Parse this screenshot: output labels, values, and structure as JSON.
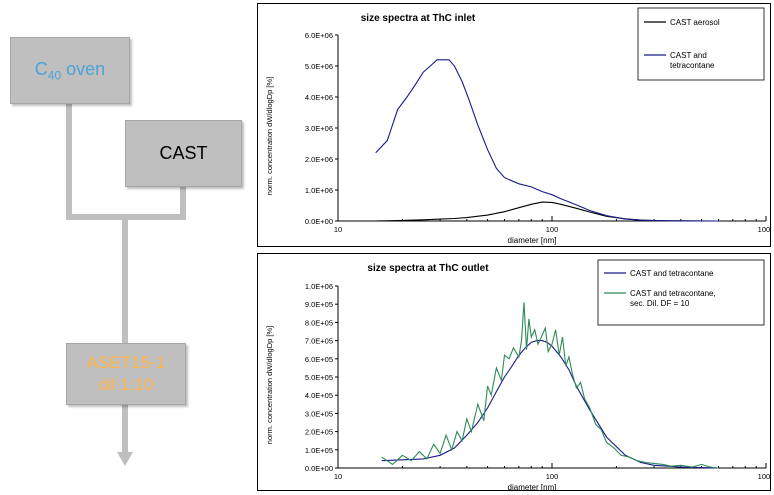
{
  "flow": {
    "c40_oven": "C",
    "c40_sub": "40",
    "c40_rest": " oven",
    "cast": "CAST",
    "aset_line1": "ASET15-1",
    "aset_line2": "dil 1:10"
  },
  "colors": {
    "black_series": "#000000",
    "blue_series": "#1a1a8c",
    "green_series": "#2e8b57",
    "flow_box": "#bfbfbf",
    "c40_text": "#4aa3d8",
    "aset_text": "#ffb347"
  },
  "chart_data": [
    {
      "type": "line",
      "title": "size spectra at ThC inlet",
      "xlabel": "diameter [nm]",
      "ylabel": "norm. concentration dW/dlogDp [%]",
      "xscale": "log",
      "xlim": [
        10,
        1000
      ],
      "ylim": [
        0,
        6000000
      ],
      "xticks": [
        "10",
        "100",
        "1000"
      ],
      "yticks": [
        "0.0E+00",
        "1.0E+06",
        "2.0E+06",
        "3.0E+06",
        "4.0E+06",
        "5.0E+06",
        "6.0E+06"
      ],
      "legend_position": "top-right",
      "series": [
        {
          "name": "CAST aerosol",
          "color": "#000000",
          "x": [
            15,
            20,
            25,
            30,
            35,
            40,
            50,
            60,
            70,
            80,
            90,
            100,
            110,
            130,
            150,
            180,
            220,
            260,
            300,
            350,
            400,
            500,
            600
          ],
          "y": [
            0,
            20000,
            40000,
            60000,
            80000,
            110000,
            190000,
            300000,
            430000,
            540000,
            610000,
            600000,
            540000,
            410000,
            290000,
            150000,
            70000,
            30000,
            15000,
            8000,
            5000,
            2000,
            0
          ]
        },
        {
          "name": "CAST and tetracontane",
          "color": "#1a1a8c",
          "x": [
            15,
            17,
            19,
            21,
            23,
            25,
            27,
            29,
            31,
            33,
            35,
            38,
            41,
            45,
            50,
            55,
            60,
            70,
            80,
            90,
            100,
            110,
            130,
            150,
            180,
            220,
            260,
            300,
            350,
            400,
            500,
            600
          ],
          "y": [
            2200000,
            2600000,
            3600000,
            4000000,
            4400000,
            4800000,
            5000000,
            5200000,
            5200000,
            5200000,
            5000000,
            4500000,
            3900000,
            3100000,
            2300000,
            1700000,
            1400000,
            1200000,
            1100000,
            950000,
            850000,
            720000,
            520000,
            340000,
            170000,
            60000,
            25000,
            12000,
            5000,
            3000,
            1000,
            0
          ]
        }
      ]
    },
    {
      "type": "line",
      "title": "size spectra at ThC outlet",
      "xlabel": "diameter [nm]",
      "ylabel": "norm. concentration dW/dlogDp [%]",
      "xscale": "log",
      "xlim": [
        10,
        1000
      ],
      "ylim": [
        0,
        1000000
      ],
      "xticks": [
        "10",
        "100",
        "1000"
      ],
      "yticks": [
        "0.0E+00",
        "1.0E+05",
        "2.0E+05",
        "3.0E+05",
        "4.0E+05",
        "5.0E+05",
        "6.0E+05",
        "7.0E+05",
        "8.0E+05",
        "9.0E+05",
        "1.0E+06"
      ],
      "legend_position": "top-right",
      "series": [
        {
          "name": "CAST and tetracontane",
          "color": "#1a1a8c",
          "x": [
            16,
            20,
            25,
            30,
            35,
            40,
            45,
            50,
            55,
            60,
            65,
            70,
            75,
            80,
            85,
            90,
            95,
            100,
            110,
            120,
            130,
            150,
            180,
            220,
            260,
            300,
            350,
            400,
            500,
            600
          ],
          "y": [
            40000,
            45000,
            50000,
            70000,
            110000,
            180000,
            250000,
            330000,
            420000,
            500000,
            560000,
            620000,
            660000,
            690000,
            700000,
            700000,
            690000,
            670000,
            610000,
            540000,
            450000,
            320000,
            170000,
            70000,
            30000,
            15000,
            10000,
            5000,
            2000,
            0
          ]
        },
        {
          "name": "CAST and tetracontane, sec. Dil. DF = 10",
          "color": "#2e8b57",
          "x": [
            16,
            18,
            20,
            22,
            24,
            26,
            28,
            30,
            32,
            34,
            36,
            38,
            40,
            42,
            45,
            48,
            50,
            52,
            55,
            58,
            60,
            63,
            66,
            70,
            72,
            74,
            76,
            78,
            80,
            83,
            86,
            90,
            93,
            96,
            100,
            104,
            108,
            112,
            116,
            120,
            125,
            130,
            136,
            142,
            150,
            160,
            170,
            180,
            195,
            210,
            230,
            250,
            275,
            300,
            330,
            360,
            400,
            450,
            500,
            550,
            600
          ],
          "y": [
            60000,
            20000,
            70000,
            40000,
            90000,
            50000,
            130000,
            80000,
            180000,
            100000,
            200000,
            150000,
            270000,
            200000,
            350000,
            260000,
            450000,
            400000,
            550000,
            480000,
            620000,
            600000,
            660000,
            610000,
            700000,
            910000,
            650000,
            820000,
            720000,
            760000,
            680000,
            730000,
            770000,
            640000,
            680000,
            760000,
            620000,
            720000,
            560000,
            610000,
            510000,
            440000,
            470000,
            380000,
            330000,
            240000,
            210000,
            140000,
            110000,
            70000,
            60000,
            40000,
            30000,
            25000,
            20000,
            10000,
            15000,
            5000,
            20000,
            5000,
            0
          ]
        }
      ]
    }
  ]
}
